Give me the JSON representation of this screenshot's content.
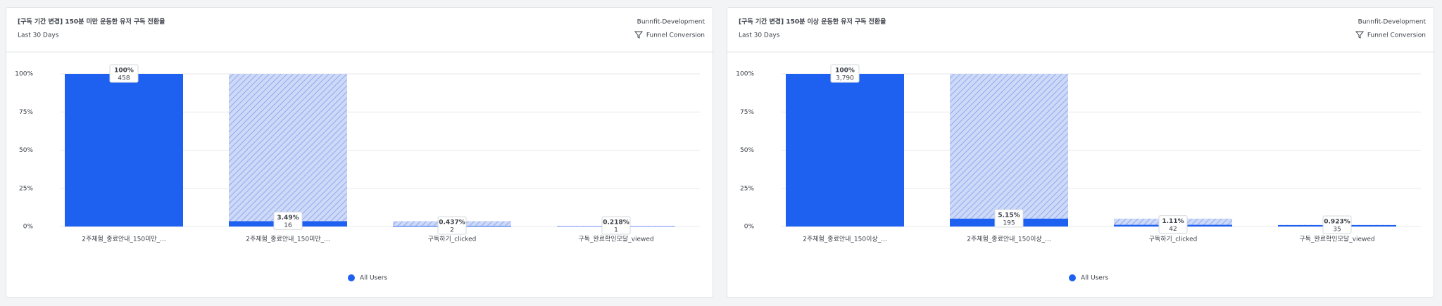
{
  "chart_data": [
    {
      "type": "funnel",
      "title": "[구독 기간 변경] 150분 미만 운동한 유저 구독 전환율",
      "subtitle": "Last 30 Days",
      "project": "Bunnfit-Development",
      "chart_kind": "Funnel Conversion",
      "categories": [
        "2주체험_종료안내_150미만_...",
        "2주체험_종료안내_150미만_...",
        "구독하기_clicked",
        "구독_완료확인모달_viewed"
      ],
      "values": [
        100,
        3.49,
        0.437,
        0.218
      ],
      "value_labels": [
        "100%",
        "3.49%",
        "0.437%",
        "0.218%"
      ],
      "counts": [
        458,
        16,
        2,
        1
      ],
      "series": [
        {
          "name": "All Users",
          "color": "#1e61f0"
        }
      ],
      "ylim": [
        0,
        100
      ],
      "yticks": [
        {
          "value": 0,
          "label": "0%"
        },
        {
          "value": 25,
          "label": "25%"
        },
        {
          "value": 50,
          "label": "50%"
        },
        {
          "value": 75,
          "label": "75%"
        },
        {
          "value": 100,
          "label": "100%"
        }
      ],
      "grid": true
    },
    {
      "type": "funnel",
      "title": "[구독 기간 변경] 150분 이상 운동한 유저 구독 전환율",
      "subtitle": "Last 30 Days",
      "project": "Bunnfit-Development",
      "chart_kind": "Funnel Conversion",
      "categories": [
        "2주체험_종료안내_150이상_...",
        "2주체험_종료안내_150이상_...",
        "구독하기_clicked",
        "구독_완료확인모달_viewed"
      ],
      "values": [
        100,
        5.15,
        1.11,
        0.923
      ],
      "value_labels": [
        "100%",
        "5.15%",
        "1.11%",
        "0.923%"
      ],
      "counts": [
        {
          "value": 3790,
          "label": "3,790"
        },
        195,
        42,
        35
      ],
      "series": [
        {
          "name": "All Users",
          "color": "#1e61f0"
        }
      ],
      "ylim": [
        0,
        100
      ],
      "yticks": [
        {
          "value": 0,
          "label": "0%"
        },
        {
          "value": 25,
          "label": "25%"
        },
        {
          "value": 50,
          "label": "50%"
        },
        {
          "value": 75,
          "label": "75%"
        },
        {
          "value": 100,
          "label": "100%"
        }
      ],
      "grid": true
    }
  ]
}
